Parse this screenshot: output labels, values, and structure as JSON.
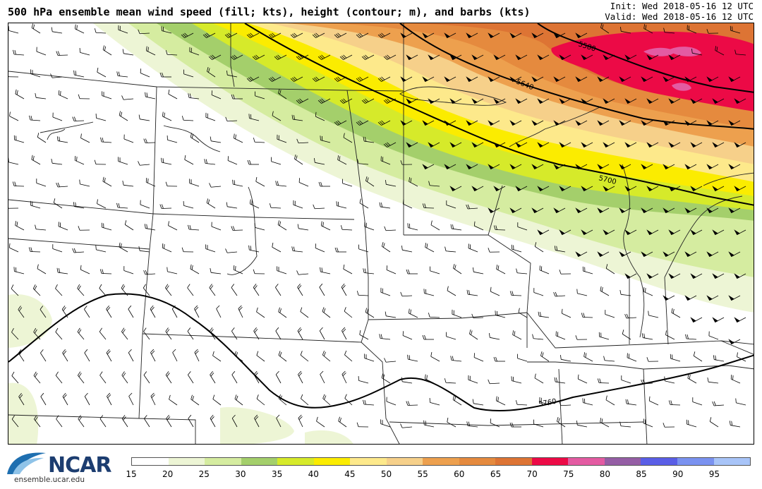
{
  "header": {
    "title": "500 hPa ensemble mean wind speed (fill; kts), height (contour; m), and barbs (kts)",
    "init": "Init: Wed 2018-05-16 12 UTC",
    "valid": "Valid: Wed 2018-05-16 12 UTC"
  },
  "map": {
    "contour_labels": [
      "5580",
      "5640",
      "5700",
      "5760"
    ]
  },
  "colorbar": {
    "ticks": [
      "15",
      "20",
      "25",
      "30",
      "35",
      "40",
      "45",
      "50",
      "55",
      "60",
      "65",
      "70",
      "75",
      "80",
      "85",
      "90",
      "95"
    ],
    "colors": [
      "#ffffff",
      "#edf5d5",
      "#d5eca0",
      "#a4cf6b",
      "#d6ea2a",
      "#fbec00",
      "#fde98b",
      "#f6d08a",
      "#eda04e",
      "#e58a3e",
      "#dd7434",
      "#ec0a46",
      "#e35ba2",
      "#955ea5",
      "#5a5ee6",
      "#7a92f0",
      "#a8c4f8"
    ]
  },
  "logo": {
    "word": "NCAR",
    "url": "ensemble.ucar.edu"
  }
}
